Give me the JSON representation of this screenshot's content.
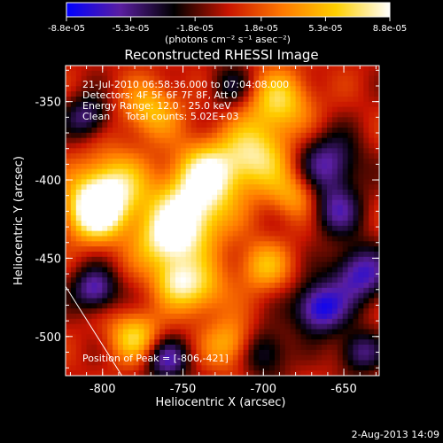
{
  "colorbar": {
    "tick_labels": [
      "-8.8e-05",
      "-5.3e-05",
      "-1.8e-05",
      "1.8e-05",
      "5.3e-05",
      "8.8e-05"
    ],
    "tick_values": [
      -8.8e-05,
      -5.3e-05,
      -1.8e-05,
      1.8e-05,
      5.3e-05,
      8.8e-05
    ],
    "range": [
      -8.8e-05,
      8.8e-05
    ],
    "units": "(photons cm⁻² s⁻¹ asec⁻²)",
    "colors": [
      "#0000ff",
      "#5a1ea0",
      "#000000",
      "#c81400",
      "#ff7800",
      "#ffd000",
      "#ffffff"
    ]
  },
  "chart_data": {
    "type": "heatmap",
    "title": "Reconstructed RHESSI Image",
    "xlabel": "Heliocentric X (arcsec)",
    "ylabel": "Heliocentric Y (arcsec)",
    "xlim": [
      -823,
      -628
    ],
    "ylim": [
      -525,
      -327
    ],
    "x_ticks": [
      -800,
      -750,
      -700,
      -650
    ],
    "x_tick_labels": [
      "-800",
      "-750",
      "-700",
      "-650"
    ],
    "y_ticks": [
      -500,
      -450,
      -400,
      -350
    ],
    "y_tick_labels": [
      "-500",
      "-450",
      "-400",
      "-350"
    ],
    "peak": [
      -806,
      -421
    ],
    "limb_line": [
      [
        -823,
        -468
      ],
      [
        -788,
        -525
      ]
    ],
    "annotations": [
      "21-Jul-2010 06:58:36.000 to 07:04:08.000",
      "Detectors: 4F 5F 6F 7F 8F, Att 0",
      "Energy Range: 12.0 - 25.0 keV",
      "Clean     Total counts: 5.02E+03"
    ],
    "peak_label": "Position of Peak = [-806,-421]"
  },
  "footer": {
    "date": "2-Aug-2013 14:09"
  }
}
